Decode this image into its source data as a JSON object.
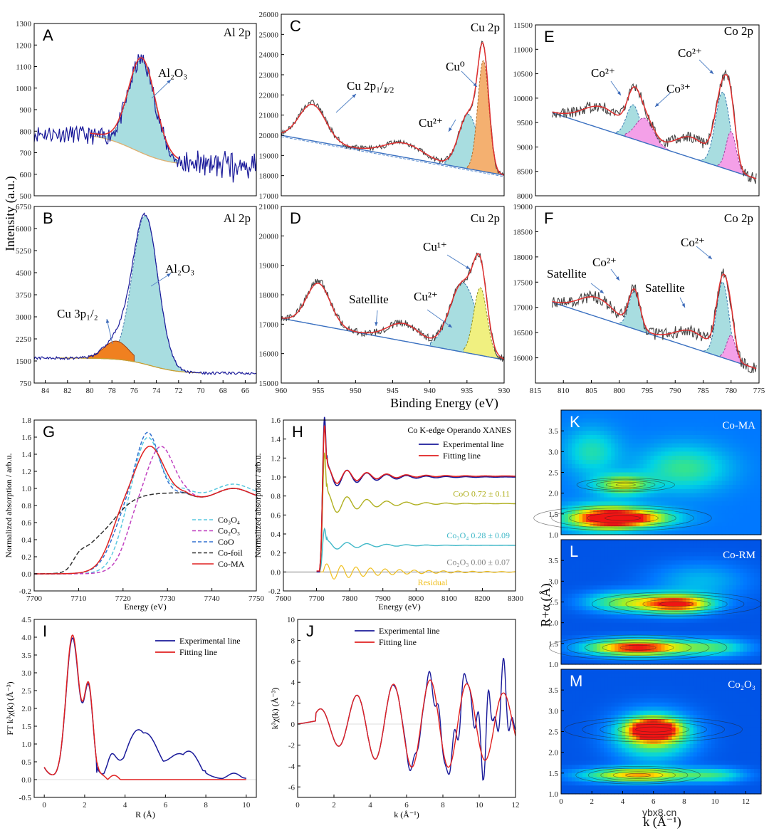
{
  "figure": {
    "shared_labels": {
      "intensity": "Intensity (a.u.)",
      "binding_energy": "Binding Energy (eV)",
      "r_alpha": "R+α (Å)",
      "k_wt": "k (Å⁻¹)"
    },
    "watermark": "ybx8.cn"
  },
  "chart_data": [
    {
      "id": "A",
      "type": "line",
      "title": "Al 2p",
      "xlim": [
        85,
        65
      ],
      "ylim": [
        500,
        1300
      ],
      "xticks": [
        "84",
        "82",
        "80",
        "78",
        "76",
        "74",
        "72",
        "70",
        "68",
        "66"
      ],
      "yticks": [
        "500",
        "600",
        "700",
        "800",
        "900",
        "1000",
        "1100",
        "1200",
        "1300"
      ],
      "annotations": [
        {
          "text": "Al₂O₃"
        }
      ],
      "series": [
        {
          "name": "raw",
          "color": "#1a1a9a"
        },
        {
          "name": "envelope",
          "color": "#e03030"
        },
        {
          "name": "Al2O3",
          "color": "#a8dde0"
        },
        {
          "name": "background",
          "color": "#e0b070"
        }
      ]
    },
    {
      "id": "B",
      "type": "line",
      "title": "Al 2p",
      "xlim": [
        85,
        65
      ],
      "ylim": [
        750,
        6750
      ],
      "xticks": [
        "84",
        "82",
        "80",
        "78",
        "76",
        "74",
        "72",
        "70",
        "68",
        "66"
      ],
      "yticks": [
        "750",
        "1500",
        "2250",
        "3000",
        "3750",
        "4500",
        "5250",
        "6000",
        "6750"
      ],
      "annotations": [
        {
          "text": "Al₂O₃"
        },
        {
          "text": "Cu 3p₁/₂"
        }
      ],
      "series": [
        {
          "name": "raw",
          "color": "#1a1a9a"
        },
        {
          "name": "Al2O3",
          "color": "#a8dde0"
        },
        {
          "name": "Cu 3p1/2",
          "color": "#f08020"
        }
      ]
    },
    {
      "id": "C",
      "type": "line",
      "title": "Cu 2p",
      "xlim": [
        960,
        930
      ],
      "ylim": [
        17000,
        26000
      ],
      "yticks": [
        "17000",
        "18000",
        "19000",
        "20000",
        "21000",
        "22000",
        "23000",
        "24000",
        "25000",
        "26000"
      ],
      "annotations": [
        {
          "text": "Cu 2p₁/₂"
        },
        {
          "text": "Cu⁰"
        },
        {
          "text": "Cu²⁺"
        }
      ]
    },
    {
      "id": "D",
      "type": "line",
      "title": "Cu 2p",
      "xlim": [
        960,
        930
      ],
      "ylim": [
        15000,
        21000
      ],
      "xticks": [
        "960",
        "955",
        "950",
        "945",
        "940",
        "935",
        "930"
      ],
      "yticks": [
        "15000",
        "16000",
        "17000",
        "18000",
        "19000",
        "20000",
        "21000"
      ],
      "annotations": [
        {
          "text": "Cu¹⁺"
        },
        {
          "text": "Satellite"
        },
        {
          "text": "Cu²⁺"
        }
      ]
    },
    {
      "id": "E",
      "type": "line",
      "title": "Co 2p",
      "xlim": [
        815,
        775
      ],
      "ylim": [
        8000,
        11500
      ],
      "yticks": [
        "8000",
        "8500",
        "9000",
        "9500",
        "10000",
        "10500",
        "11000",
        "11500"
      ],
      "annotations": [
        {
          "text": "Co²⁺"
        },
        {
          "text": "Co³⁺"
        },
        {
          "text": "Co²⁺"
        }
      ]
    },
    {
      "id": "F",
      "type": "line",
      "title": "Co 2p",
      "xlim": [
        815,
        775
      ],
      "ylim": [
        15500,
        19000
      ],
      "xticks": [
        "815",
        "810",
        "805",
        "800",
        "795",
        "790",
        "785",
        "780",
        "775"
      ],
      "yticks": [
        "16000",
        "16500",
        "17000",
        "17500",
        "18000",
        "18500",
        "19000"
      ],
      "annotations": [
        {
          "text": "Satellite"
        },
        {
          "text": "Co²⁺"
        },
        {
          "text": "Satellite"
        },
        {
          "text": "Co²⁺"
        }
      ]
    },
    {
      "id": "G",
      "type": "line",
      "xlabel": "Energy (eV)",
      "ylabel": "Normalized absorption / arb.u.",
      "xlim": [
        7700,
        7750
      ],
      "ylim": [
        -0.2,
        1.8
      ],
      "xticks": [
        "7700",
        "7710",
        "7720",
        "7730",
        "7740",
        "7750"
      ],
      "yticks": [
        "-0.2",
        "0.0",
        "0.2",
        "0.4",
        "0.6",
        "0.8",
        "1.0",
        "1.2",
        "1.4",
        "1.6",
        "1.8"
      ],
      "legend": [
        "Co₃O₄",
        "Co₂O₃",
        "CoO",
        "Co-foil",
        "Co-MA"
      ],
      "legend_colors": [
        "#5ac8e0",
        "#c040c0",
        "#3070d0",
        "#303030",
        "#e02020"
      ]
    },
    {
      "id": "H",
      "type": "line",
      "title": "Co K-edge Operando XANES",
      "xlabel": "Energy (eV)",
      "ylabel": "Normalized absorption / arb.u.",
      "xlim": [
        7600,
        8300
      ],
      "ylim": [
        -0.2,
        1.6
      ],
      "xticks": [
        "7600",
        "7700",
        "7800",
        "7900",
        "8000",
        "8100",
        "8200",
        "8300"
      ],
      "yticks": [
        "-0.2",
        "0.0",
        "0.2",
        "0.4",
        "0.6",
        "0.8",
        "1.0",
        "1.2",
        "1.4",
        "1.6"
      ],
      "legend": [
        "Experimental line",
        "Fitting line"
      ],
      "legend_colors": [
        "#1a1a9a",
        "#e02020"
      ],
      "components": [
        {
          "label": "CoO  0.72 ± 0.11",
          "color": "#b0b020",
          "level": 0.72
        },
        {
          "label": "Co₃O₄  0.28 ± 0.09",
          "color": "#40b8c8",
          "level": 0.28
        },
        {
          "label": "Co₂O₃  0.00 ± 0.07",
          "color": "#808080",
          "level": 0.0
        },
        {
          "label": "Residual",
          "color": "#f0c020",
          "level": 0.0
        }
      ]
    },
    {
      "id": "I",
      "type": "line",
      "xlabel": "R (Å)",
      "ylabel": "FT k³χ(k) (Å⁻³)",
      "xlim": [
        -0.5,
        10.5
      ],
      "ylim": [
        -0.5,
        4.5
      ],
      "xticks": [
        "0",
        "2",
        "4",
        "6",
        "8",
        "10"
      ],
      "yticks": [
        "-0.5",
        "0.0",
        "0.5",
        "1.0",
        "1.5",
        "2.0",
        "2.5",
        "3.0",
        "3.5",
        "4.0",
        "4.5"
      ],
      "legend": [
        "Experimental line",
        "Fitting line"
      ],
      "legend_colors": [
        "#1a1a9a",
        "#e02020"
      ]
    },
    {
      "id": "J",
      "type": "line",
      "xlabel": "k (Å⁻¹)",
      "ylabel": "k³χ(k) (Å⁻³)",
      "xlim": [
        0,
        12
      ],
      "ylim": [
        -7,
        10
      ],
      "xticks": [
        "0",
        "2",
        "4",
        "6",
        "8",
        "10",
        "12"
      ],
      "yticks": [
        "-6",
        "-4",
        "-2",
        "0",
        "2",
        "4",
        "6",
        "8",
        "10"
      ],
      "legend": [
        "Experimental line",
        "Fitting line"
      ],
      "legend_colors": [
        "#1a1a9a",
        "#e02020"
      ]
    },
    {
      "id": "K",
      "type": "heatmap",
      "title": "Co-MA",
      "xlim": [
        0,
        13
      ],
      "ylim": [
        1.0,
        4.0
      ],
      "yticks": [
        "1.0",
        "1.5",
        "2.0",
        "2.5",
        "3.0",
        "3.5"
      ],
      "peaks": [
        {
          "k": 4.0,
          "r": 1.4,
          "level": 1.0
        },
        {
          "k": 4.2,
          "r": 2.2,
          "level": 0.55
        }
      ]
    },
    {
      "id": "L",
      "type": "heatmap",
      "title": "Co-RM",
      "xlim": [
        0,
        13
      ],
      "ylim": [
        1.0,
        4.0
      ],
      "yticks": [
        "1.0",
        "1.5",
        "2.0",
        "2.5",
        "3.0",
        "3.5"
      ],
      "peaks": [
        {
          "k": 5.0,
          "r": 1.4,
          "level": 1.0
        },
        {
          "k": 7.5,
          "r": 2.45,
          "level": 0.95
        }
      ]
    },
    {
      "id": "M",
      "type": "heatmap",
      "title": "Co₂O₃",
      "xlim": [
        0,
        13
      ],
      "ylim": [
        1.0,
        4.0
      ],
      "xticks": [
        "0",
        "2",
        "4",
        "6",
        "8",
        "10",
        "12"
      ],
      "yticks": [
        "1.0",
        "1.5",
        "2.0",
        "2.5",
        "3.0",
        "3.5"
      ],
      "peaks": [
        {
          "k": 6.0,
          "r": 2.55,
          "level": 1.0
        },
        {
          "k": 5.0,
          "r": 1.45,
          "level": 0.7
        }
      ]
    }
  ]
}
